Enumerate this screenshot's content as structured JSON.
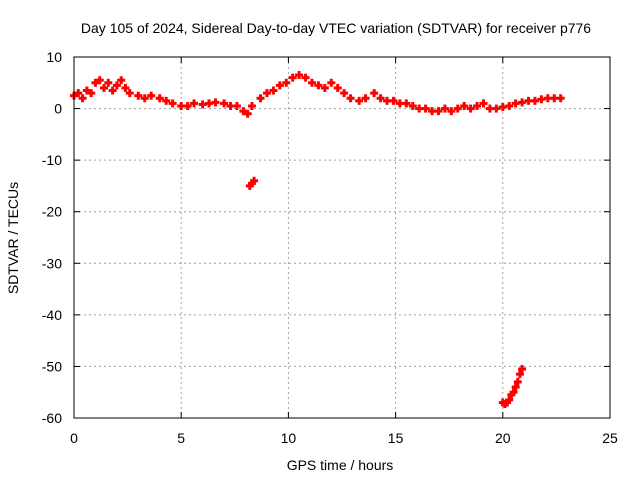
{
  "chart_data": {
    "type": "scatter",
    "title": "Day 105 of 2024, Sidereal Day-to-day VTEC variation (SDTVAR) for receiver p776",
    "xlabel": "GPS time / hours",
    "ylabel": "SDTVAR / TECUs",
    "xlim": [
      0,
      25
    ],
    "ylim": [
      -60,
      10
    ],
    "xticks": [
      0,
      5,
      10,
      15,
      20,
      25
    ],
    "yticks": [
      10,
      0,
      -10,
      -20,
      -30,
      -40,
      -50,
      -60
    ],
    "grid": true,
    "marker": "plus",
    "color": "#ff0000",
    "series": [
      {
        "name": "SDTVAR",
        "x": [
          0.0,
          0.2,
          0.4,
          0.6,
          0.8,
          1.0,
          1.2,
          1.4,
          1.6,
          1.8,
          2.0,
          2.2,
          2.4,
          2.6,
          3.0,
          3.3,
          3.6,
          4.0,
          4.3,
          4.6,
          5.0,
          5.3,
          5.6,
          6.0,
          6.3,
          6.6,
          7.0,
          7.3,
          7.6,
          7.9,
          8.1,
          8.3,
          8.7,
          9.0,
          9.3,
          9.6,
          9.9,
          10.2,
          10.5,
          10.8,
          11.1,
          11.4,
          11.7,
          12.0,
          12.3,
          12.6,
          12.9,
          13.3,
          13.6,
          14.0,
          14.3,
          14.6,
          14.9,
          15.2,
          15.5,
          15.8,
          16.1,
          16.4,
          16.7,
          17.0,
          17.3,
          17.6,
          17.9,
          18.2,
          18.5,
          18.8,
          19.1,
          19.4,
          19.7,
          20.0,
          20.3,
          20.6,
          20.9,
          21.2,
          21.5,
          21.8,
          22.1,
          22.4,
          22.7,
          8.2,
          8.3,
          8.4,
          20.0,
          20.1,
          20.2,
          20.3,
          20.4,
          20.5,
          20.6,
          20.7,
          20.8,
          20.9
        ],
        "y": [
          2.5,
          3,
          2,
          3.5,
          3,
          5,
          5.5,
          4,
          5,
          3.5,
          4.5,
          5.5,
          4,
          3,
          2.5,
          2,
          2.5,
          2,
          1.5,
          1,
          0.5,
          0.5,
          1,
          0.8,
          1,
          1.2,
          1,
          0.5,
          0.5,
          -0.5,
          -1,
          0.5,
          2,
          3,
          3.5,
          4.5,
          5,
          6,
          6.5,
          6,
          5,
          4.5,
          4,
          5,
          4,
          3,
          2,
          1.5,
          2,
          3,
          2,
          1.5,
          1.5,
          1,
          1,
          0.5,
          0,
          0,
          -0.5,
          -0.5,
          0,
          -0.5,
          0,
          0.5,
          0,
          0.5,
          1,
          0,
          0,
          0.3,
          0.5,
          1,
          1.2,
          1.5,
          1.5,
          1.8,
          2,
          2,
          2,
          -15,
          -14.5,
          -14,
          -57,
          -57.3,
          -57,
          -56.5,
          -55.5,
          -55,
          -54,
          -53,
          -51.5,
          -50.5
        ]
      }
    ]
  }
}
